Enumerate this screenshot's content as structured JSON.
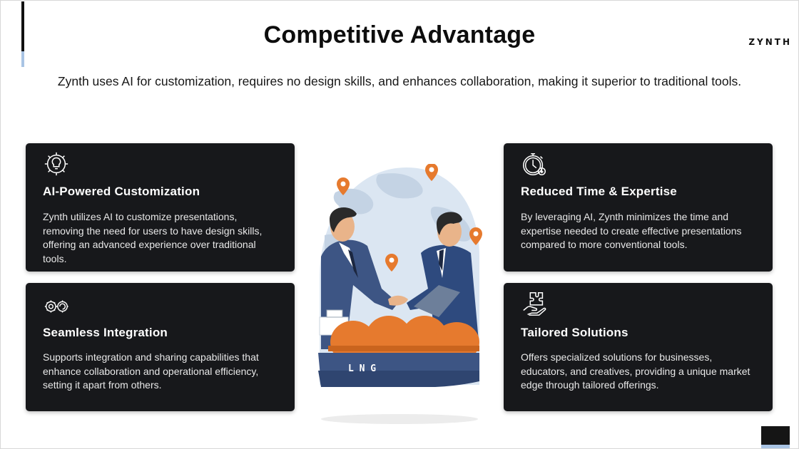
{
  "slide": {
    "title": "Competitive Advantage",
    "brand": "ZYNTH",
    "subtitle": "Zynth uses AI for customization, requires no design skills, and enhances collaboration, making it superior to traditional tools."
  },
  "cards": [
    {
      "icon": "ai-brain-gear-icon",
      "title": "AI-Powered Customization",
      "body": "Zynth utilizes AI to customize presentations, removing the need for users to have design skills, offering an advanced experience over traditional tools."
    },
    {
      "icon": "integration-gears-icon",
      "title": "Seamless Integration",
      "body": "Supports integration and sharing capabilities that enhance collaboration and operational efficiency, setting it apart from others."
    },
    {
      "icon": "stopwatch-icon",
      "title": "Reduced Time & Expertise",
      "body": "By leveraging AI, Zynth minimizes the time and expertise needed to create effective presentations compared to more conventional tools."
    },
    {
      "icon": "puzzle-hand-icon",
      "title": "Tailored Solutions",
      "body": "Offers specialized solutions for businesses, educators, and creatives, providing a unique market edge through tailored offerings."
    }
  ],
  "illustration": {
    "icon": "handshake-lng-ship-illustration",
    "ship_label": "L N G"
  },
  "colors": {
    "card_bg": "#17181b",
    "accent_blue": "#a9c4e4",
    "orange": "#e67a2e",
    "navy": "#3d5584"
  }
}
